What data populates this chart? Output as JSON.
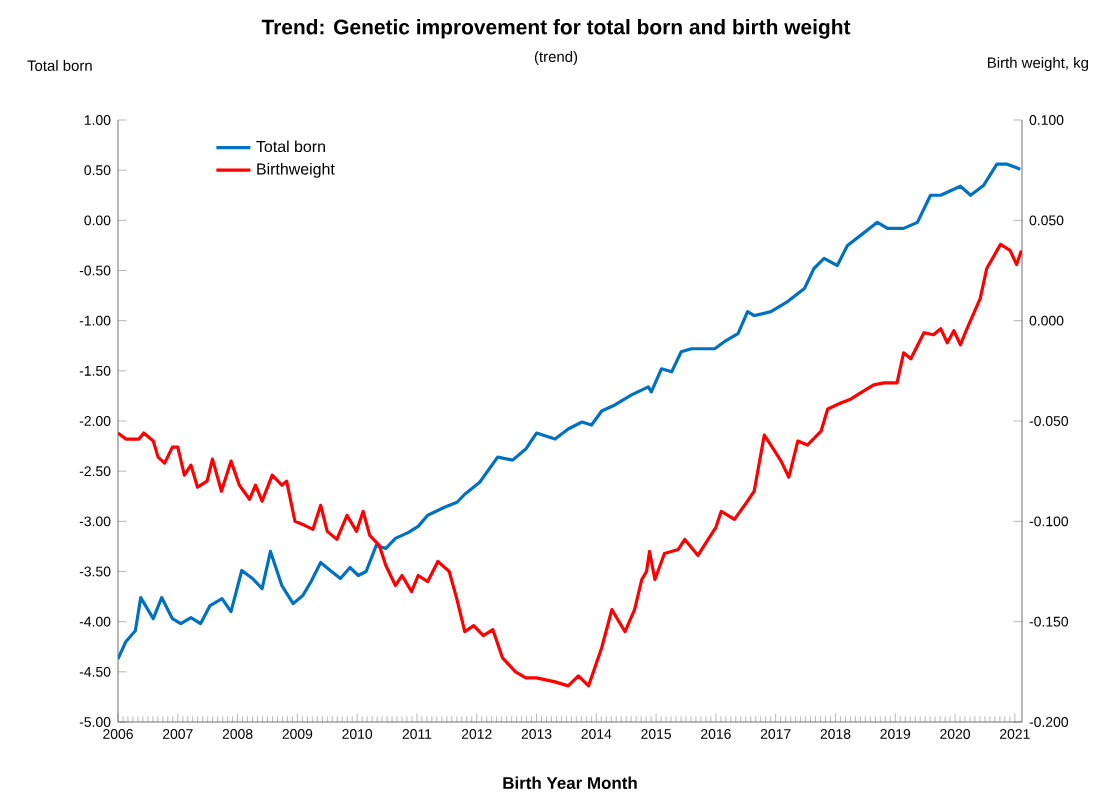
{
  "chart_data": {
    "type": "line",
    "title": "Trend: Genetic improvement for total born and birth weight",
    "subtitle": "(trend)",
    "xlabel": "Birth Year Month",
    "ylabel": "Total born",
    "y2label": "Birth weight, kg",
    "xlim": [
      2006,
      2021.12
    ],
    "xticks": [
      2006,
      2007,
      2008,
      2009,
      2010,
      2011,
      2012,
      2013,
      2014,
      2015,
      2016,
      2017,
      2018,
      2019,
      2020,
      2021
    ],
    "ylim": [
      -5,
      1
    ],
    "yticks": [
      {
        "value": 1,
        "label": "1.00"
      },
      {
        "value": 0.5,
        "label": "0.50"
      },
      {
        "value": 0,
        "label": "0.00"
      },
      {
        "value": -0.5,
        "label": "-0.50"
      },
      {
        "value": -1,
        "label": "-1.00"
      },
      {
        "value": -1.5,
        "label": "-1.50"
      },
      {
        "value": -2,
        "label": "-2.00"
      },
      {
        "value": -2.5,
        "label": "-2.50"
      },
      {
        "value": -3,
        "label": "-3.00"
      },
      {
        "value": -3.5,
        "label": "-3.50"
      },
      {
        "value": -4,
        "label": "-4.00"
      },
      {
        "value": -4.5,
        "label": "-4.50"
      },
      {
        "value": -5,
        "label": "-5.00"
      }
    ],
    "y2lim": [
      -0.2,
      0.1
    ],
    "y2ticks": [
      {
        "value": 0.1,
        "label": "0.100"
      },
      {
        "value": 0.05,
        "label": "0.050"
      },
      {
        "value": 0,
        "label": "0.000"
      },
      {
        "value": -0.05,
        "label": "-0.050"
      },
      {
        "value": -0.1,
        "label": "-0.100"
      },
      {
        "value": -0.15,
        "label": "-0.150"
      },
      {
        "value": -0.2,
        "label": "-0.200"
      }
    ],
    "legend": "top left",
    "grid": false,
    "marker": "none",
    "line_style": "solid",
    "series": [
      {
        "name": "Total born",
        "color": "#0070c0",
        "x": [
          2006.0,
          2006.13,
          2006.29,
          2006.38,
          2006.59,
          2006.73,
          2006.91,
          2007.05,
          2007.22,
          2007.38,
          2007.54,
          2007.74,
          2007.89,
          2008.07,
          2008.25,
          2008.41,
          2008.55,
          2008.74,
          2008.93,
          2009.09,
          2009.23,
          2009.39,
          2009.55,
          2009.72,
          2009.88,
          2010.02,
          2010.15,
          2010.32,
          2010.48,
          2010.64,
          2010.86,
          2011.02,
          2011.18,
          2011.46,
          2011.67,
          2011.8,
          2012.05,
          2012.35,
          2012.6,
          2012.82,
          2013.0,
          2013.31,
          2013.53,
          2013.76,
          2013.92,
          2014.09,
          2014.31,
          2014.59,
          2014.87,
          2014.92,
          2015.09,
          2015.26,
          2015.42,
          2015.59,
          2015.76,
          2015.98,
          2016.14,
          2016.37,
          2016.53,
          2016.64,
          2016.92,
          2017.2,
          2017.48,
          2017.64,
          2017.81,
          2018.03,
          2018.2,
          2018.42,
          2018.7,
          2018.87,
          2019.14,
          2019.37,
          2019.59,
          2019.76,
          2020.09,
          2020.26,
          2020.48,
          2020.7,
          2020.87,
          2021.09
        ],
        "values": [
          -4.37,
          -4.2,
          -4.09,
          -3.76,
          -3.97,
          -3.76,
          -3.97,
          -4.02,
          -3.96,
          -4.02,
          -3.84,
          -3.77,
          -3.9,
          -3.49,
          -3.57,
          -3.67,
          -3.3,
          -3.64,
          -3.82,
          -3.74,
          -3.6,
          -3.41,
          -3.49,
          -3.57,
          -3.46,
          -3.54,
          -3.5,
          -3.24,
          -3.27,
          -3.17,
          -3.11,
          -3.05,
          -2.94,
          -2.86,
          -2.81,
          -2.73,
          -2.61,
          -2.36,
          -2.39,
          -2.28,
          -2.12,
          -2.18,
          -2.08,
          -2.01,
          -2.04,
          -1.9,
          -1.84,
          -1.74,
          -1.66,
          -1.71,
          -1.48,
          -1.51,
          -1.31,
          -1.28,
          -1.28,
          -1.28,
          -1.21,
          -1.13,
          -0.91,
          -0.95,
          -0.91,
          -0.81,
          -0.68,
          -0.48,
          -0.38,
          -0.45,
          -0.25,
          -0.15,
          -0.02,
          -0.08,
          -0.08,
          -0.02,
          0.25,
          0.25,
          0.34,
          0.25,
          0.35,
          0.56,
          0.56,
          0.51
        ]
      },
      {
        "name": "Birthweight",
        "color": "#ff0000",
        "axis": "y2",
        "x": [
          2006.0,
          2006.13,
          2006.35,
          2006.43,
          2006.59,
          2006.67,
          2006.78,
          2006.91,
          2007.0,
          2007.11,
          2007.22,
          2007.33,
          2007.49,
          2007.58,
          2007.73,
          2007.89,
          2008.03,
          2008.2,
          2008.3,
          2008.41,
          2008.58,
          2008.74,
          2008.82,
          2008.96,
          2009.12,
          2009.26,
          2009.39,
          2009.5,
          2009.66,
          2009.83,
          2009.99,
          2010.1,
          2010.21,
          2010.37,
          2010.48,
          2010.64,
          2010.75,
          2010.91,
          2011.02,
          2011.18,
          2011.35,
          2011.54,
          2011.67,
          2011.8,
          2011.95,
          2012.11,
          2012.27,
          2012.43,
          2012.65,
          2012.82,
          2013.0,
          2013.31,
          2013.53,
          2013.7,
          2013.87,
          2014.09,
          2014.26,
          2014.48,
          2014.64,
          2014.76,
          2014.84,
          2014.89,
          2014.98,
          2015.14,
          2015.37,
          2015.48,
          2015.7,
          2015.87,
          2016.0,
          2016.09,
          2016.31,
          2016.48,
          2016.64,
          2016.81,
          2016.92,
          2017.09,
          2017.22,
          2017.37,
          2017.53,
          2017.76,
          2017.87,
          2018.09,
          2018.26,
          2018.42,
          2018.64,
          2018.81,
          2019.03,
          2019.14,
          2019.26,
          2019.48,
          2019.64,
          2019.76,
          2019.87,
          2019.98,
          2020.09,
          2020.2,
          2020.42,
          2020.53,
          2020.76,
          2020.92,
          2021.03,
          2021.11
        ],
        "values": [
          -0.056,
          -0.059,
          -0.059,
          -0.056,
          -0.06,
          -0.068,
          -0.071,
          -0.063,
          -0.063,
          -0.077,
          -0.072,
          -0.083,
          -0.08,
          -0.069,
          -0.085,
          -0.07,
          -0.082,
          -0.089,
          -0.082,
          -0.09,
          -0.077,
          -0.082,
          -0.08,
          -0.1,
          -0.102,
          -0.104,
          -0.092,
          -0.105,
          -0.109,
          -0.097,
          -0.105,
          -0.095,
          -0.107,
          -0.112,
          -0.122,
          -0.132,
          -0.127,
          -0.135,
          -0.127,
          -0.13,
          -0.12,
          -0.125,
          -0.139,
          -0.155,
          -0.152,
          -0.157,
          -0.154,
          -0.168,
          -0.175,
          -0.178,
          -0.178,
          -0.18,
          -0.182,
          -0.177,
          -0.182,
          -0.163,
          -0.144,
          -0.155,
          -0.144,
          -0.129,
          -0.125,
          -0.115,
          -0.129,
          -0.116,
          -0.114,
          -0.109,
          -0.117,
          -0.109,
          -0.103,
          -0.095,
          -0.099,
          -0.092,
          -0.085,
          -0.057,
          -0.062,
          -0.07,
          -0.078,
          -0.06,
          -0.062,
          -0.055,
          -0.044,
          -0.041,
          -0.039,
          -0.036,
          -0.032,
          -0.031,
          -0.031,
          -0.016,
          -0.019,
          -0.006,
          -0.007,
          -0.004,
          -0.011,
          -0.005,
          -0.012,
          -0.004,
          0.011,
          0.026,
          0.038,
          0.035,
          0.028,
          0.035
        ]
      }
    ]
  }
}
